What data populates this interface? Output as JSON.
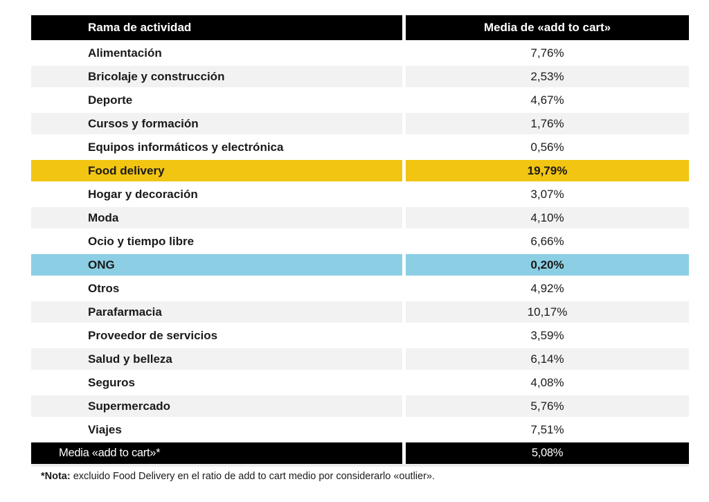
{
  "table": {
    "header": {
      "activity_column": "Rama de actividad",
      "metric_column": "Media de «add to cart»"
    },
    "rows": [
      {
        "label": "Alimentación",
        "value": "7,76%"
      },
      {
        "label": "Bricolaje y construcción",
        "value": "2,53%"
      },
      {
        "label": "Deporte",
        "value": "4,67%"
      },
      {
        "label": "Cursos y formación",
        "value": "1,76%"
      },
      {
        "label": "Equipos informáticos y electrónica",
        "value": "0,56%"
      },
      {
        "label": "Food delivery",
        "value": "19,79%",
        "highlight": "yellow"
      },
      {
        "label": "Hogar y decoración",
        "value": "3,07%"
      },
      {
        "label": "Moda",
        "value": "4,10%"
      },
      {
        "label": "Ocio y tiempo libre",
        "value": "6,66%"
      },
      {
        "label": "ONG",
        "value": "0,20%",
        "highlight": "blue"
      },
      {
        "label": "Otros",
        "value": "4,92%"
      },
      {
        "label": "Parafarmacia",
        "value": "10,17%"
      },
      {
        "label": "Proveedor de servicios",
        "value": "3,59%"
      },
      {
        "label": "Salud y belleza",
        "value": "6,14%"
      },
      {
        "label": "Seguros",
        "value": "4,08%"
      },
      {
        "label": "Supermercado",
        "value": "5,76%"
      },
      {
        "label": "Viajes",
        "value": "7,51%"
      }
    ],
    "footer": {
      "label": "Media «add to cart»*",
      "value": "5,08%"
    }
  },
  "note": {
    "prefix": "*Nota:",
    "text": " excluido Food Delivery en el ratio de add to cart medio por considerarlo «outlier»."
  },
  "colors": {
    "header_bg": "#000000",
    "row_alt": "#F2F2F2",
    "highlight_yellow": "#F2C512",
    "highlight_blue": "#8CCFE4",
    "text": "#1A1A1A"
  }
}
